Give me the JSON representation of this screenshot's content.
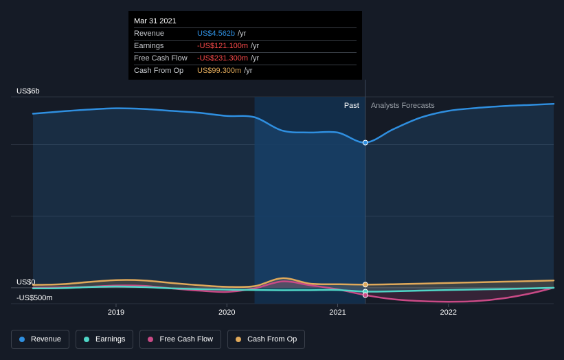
{
  "colors": {
    "revenue": "#2f8fe0",
    "earnings": "#4fd6c7",
    "free_cash_flow": "#c94a86",
    "cash_from_op": "#e0a95a",
    "background": "#151b26",
    "past_highlight": "#123050",
    "negative": "#ff4b4b"
  },
  "tooltip": {
    "date": "Mar 31 2021",
    "rows": [
      {
        "label": "Revenue",
        "value": "US$4.562b",
        "unit": "/yr",
        "color": "#2f8fe0"
      },
      {
        "label": "Earnings",
        "value": "-US$121.100m",
        "unit": "/yr",
        "color": "#ff4b4b"
      },
      {
        "label": "Free Cash Flow",
        "value": "-US$231.300m",
        "unit": "/yr",
        "color": "#ff4b4b"
      },
      {
        "label": "Cash From Op",
        "value": "US$99.300m",
        "unit": "/yr",
        "color": "#e0a95a"
      }
    ]
  },
  "chart_data": {
    "type": "line",
    "y_unit": "US$m",
    "ylim": [
      -500,
      6000
    ],
    "y_tick_labels": [
      {
        "value": 6000,
        "label": "US$6b"
      },
      {
        "value": 0,
        "label": "US$0"
      },
      {
        "value": -500,
        "label": "-US$500m"
      }
    ],
    "xlim": [
      2018.25,
      2022.95
    ],
    "x_ticks": [
      2019,
      2020,
      2021,
      2022
    ],
    "x_tick_labels": [
      "2019",
      "2020",
      "2021",
      "2022"
    ],
    "past_start": 2020.25,
    "past_end": 2021.25,
    "past_label": "Past",
    "forecast_label": "Analysts Forecasts",
    "series": [
      {
        "name": "Revenue",
        "key": "revenue",
        "x": [
          2018.25,
          2018.5,
          2018.75,
          2019.0,
          2019.25,
          2019.5,
          2019.75,
          2020.0,
          2020.25,
          2020.5,
          2020.75,
          2021.0,
          2021.25,
          2021.5,
          2021.75,
          2022.0,
          2022.25,
          2022.5,
          2022.75,
          2022.95
        ],
        "y": [
          5470,
          5540,
          5600,
          5640,
          5620,
          5560,
          5500,
          5400,
          5360,
          4940,
          4880,
          4880,
          4562,
          4980,
          5350,
          5560,
          5650,
          5710,
          5750,
          5780
        ]
      },
      {
        "name": "Earnings",
        "key": "earnings",
        "x": [
          2018.25,
          2018.5,
          2018.75,
          2019.0,
          2019.25,
          2019.5,
          2019.75,
          2020.0,
          2020.25,
          2020.5,
          2020.75,
          2021.0,
          2021.25,
          2021.5,
          2021.75,
          2022.0,
          2022.25,
          2022.5,
          2022.75,
          2022.95
        ],
        "y": [
          -20,
          -15,
          20,
          40,
          20,
          -20,
          -45,
          -60,
          -70,
          -80,
          -75,
          -70,
          -121,
          -110,
          -90,
          -70,
          -55,
          -40,
          -20,
          0
        ]
      },
      {
        "name": "Free Cash Flow",
        "key": "free_cash_flow",
        "x": [
          2018.25,
          2018.5,
          2018.75,
          2019.0,
          2019.25,
          2019.5,
          2019.75,
          2020.0,
          2020.25,
          2020.5,
          2020.75,
          2021.0,
          2021.25,
          2021.5,
          2021.75,
          2022.0,
          2022.25,
          2022.5,
          2022.75,
          2022.95
        ],
        "y": [
          0,
          10,
          30,
          70,
          60,
          -20,
          -90,
          -130,
          -20,
          200,
          80,
          -50,
          -231,
          -360,
          -420,
          -440,
          -420,
          -330,
          -170,
          0
        ]
      },
      {
        "name": "Cash From Op",
        "key": "cash_from_op",
        "x": [
          2018.25,
          2018.5,
          2018.75,
          2019.0,
          2019.25,
          2019.5,
          2019.75,
          2020.0,
          2020.25,
          2020.5,
          2020.75,
          2021.0,
          2021.25,
          2021.5,
          2021.75,
          2022.0,
          2022.25,
          2022.5,
          2022.75,
          2022.95
        ],
        "y": [
          90,
          110,
          180,
          240,
          230,
          150,
          80,
          30,
          50,
          300,
          130,
          110,
          99.3,
          110,
          130,
          150,
          170,
          190,
          210,
          230
        ]
      }
    ]
  },
  "legend": [
    {
      "label": "Revenue",
      "key": "revenue"
    },
    {
      "label": "Earnings",
      "key": "earnings"
    },
    {
      "label": "Free Cash Flow",
      "key": "free_cash_flow"
    },
    {
      "label": "Cash From Op",
      "key": "cash_from_op"
    }
  ]
}
